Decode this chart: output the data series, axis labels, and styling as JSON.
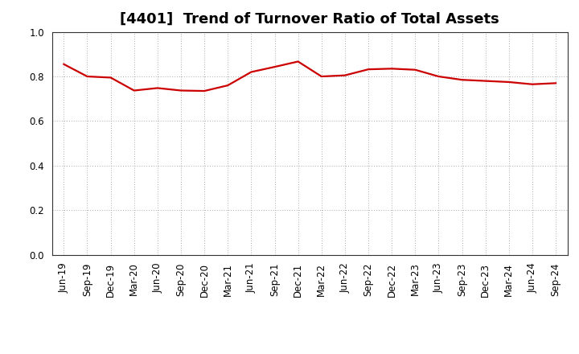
{
  "title": "[4401]  Trend of Turnover Ratio of Total Assets",
  "x_labels": [
    "Jun-19",
    "Sep-19",
    "Dec-19",
    "Mar-20",
    "Jun-20",
    "Sep-20",
    "Dec-20",
    "Mar-21",
    "Jun-21",
    "Sep-21",
    "Dec-21",
    "Mar-22",
    "Jun-22",
    "Sep-22",
    "Dec-22",
    "Mar-23",
    "Jun-23",
    "Sep-23",
    "Dec-23",
    "Mar-24",
    "Jun-24",
    "Sep-24"
  ],
  "y_values": [
    0.855,
    0.8,
    0.795,
    0.737,
    0.748,
    0.737,
    0.735,
    0.76,
    0.82,
    0.843,
    0.867,
    0.8,
    0.805,
    0.832,
    0.835,
    0.83,
    0.8,
    0.785,
    0.78,
    0.775,
    0.765,
    0.77
  ],
  "line_color": "#cc0000",
  "line_width": 1.6,
  "ylim": [
    0.0,
    1.0
  ],
  "yticks": [
    0.0,
    0.2,
    0.4,
    0.6,
    0.8,
    1.0
  ],
  "grid_color": "#aaaaaa",
  "bg_color": "#ffffff",
  "title_fontsize": 13,
  "tick_fontsize": 8.5
}
